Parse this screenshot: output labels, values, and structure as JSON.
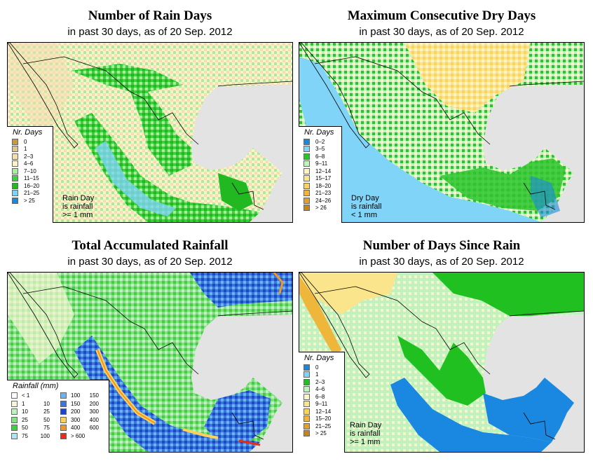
{
  "panels": [
    {
      "title": "Number of Rain Days",
      "subtitle": "in past 30 days, as of  20 Sep. 2012",
      "legend_title": "Nr. Days",
      "legend": [
        {
          "label": "0",
          "color": "#c79a42"
        },
        {
          "label": "1",
          "color": "#ddc58c"
        },
        {
          "label": "2–3",
          "color": "#f4deb3"
        },
        {
          "label": "4–6",
          "color": "#fbf3c8"
        },
        {
          "label": "7–10",
          "color": "#a9ec9c"
        },
        {
          "label": "11–15",
          "color": "#3fcf3f"
        },
        {
          "label": "16–20",
          "color": "#21b821"
        },
        {
          "label": "21–25",
          "color": "#7fd4f5"
        },
        {
          "label": "> 25",
          "color": "#1e88d8"
        }
      ],
      "note": [
        "Rain Day",
        "is rainfall",
        ">= 1 mm"
      ]
    },
    {
      "title": "Maximum Consecutive Dry Days",
      "subtitle": "in past 30 days, as of  20 Sep. 2012",
      "legend_title": "Nr. Days",
      "legend": [
        {
          "label": "0–2",
          "color": "#1a88e0"
        },
        {
          "label": "3–5",
          "color": "#80d4f7"
        },
        {
          "label": "6–8",
          "color": "#2bc42b"
        },
        {
          "label": "9–11",
          "color": "#bff2bf"
        },
        {
          "label": "12–14",
          "color": "#fbf4c6"
        },
        {
          "label": "15–17",
          "color": "#fbe58c"
        },
        {
          "label": "18–20",
          "color": "#f9d262"
        },
        {
          "label": "21–23",
          "color": "#efb63c"
        },
        {
          "label": "24–26",
          "color": "#e0a030"
        },
        {
          "label": "> 26",
          "color": "#c6841c"
        }
      ],
      "note": [
        "Dry Day",
        "is rainfall",
        "< 1 mm"
      ]
    },
    {
      "title": "Total Accumulated Rainfall",
      "subtitle": "in past 30 days, as of  20 Sep. 2012",
      "legend_title": "Rainfall (mm)",
      "legend_left": [
        {
          "lo": "< 1",
          "hi": "",
          "color": "#ffffff"
        },
        {
          "lo": "1",
          "hi": "10",
          "color": "#f6f6d4"
        },
        {
          "lo": "10",
          "hi": "25",
          "color": "#bff0bf"
        },
        {
          "lo": "25",
          "hi": "50",
          "color": "#86df86"
        },
        {
          "lo": "50",
          "hi": "75",
          "color": "#3fcf3f"
        },
        {
          "lo": "75",
          "hi": "100",
          "color": "#a9e6f7"
        }
      ],
      "legend_right": [
        {
          "lo": "100",
          "hi": "150",
          "color": "#6cb4f0"
        },
        {
          "lo": "150",
          "hi": "200",
          "color": "#3877dc"
        },
        {
          "lo": "200",
          "hi": "300",
          "color": "#1e46c8"
        },
        {
          "lo": "300",
          "hi": "400",
          "color": "#fbd25a"
        },
        {
          "lo": "400",
          "hi": "600",
          "color": "#f0962a"
        },
        {
          "lo": "> 600",
          "hi": "",
          "color": "#ee2a14"
        }
      ]
    },
    {
      "title": "Number of Days Since Rain",
      "subtitle": "in past 30 days, as of  20 Sep. 2012",
      "legend_title": "Nr. Days",
      "legend": [
        {
          "label": "0",
          "color": "#1a88e0"
        },
        {
          "label": "1",
          "color": "#80d4f7"
        },
        {
          "label": "2–3",
          "color": "#21c021"
        },
        {
          "label": "4–6",
          "color": "#bff2bf"
        },
        {
          "label": "6–8",
          "color": "#fbf4c6"
        },
        {
          "label": "9–11",
          "color": "#fbe58c"
        },
        {
          "label": "12–14",
          "color": "#f9d262"
        },
        {
          "label": "15–20",
          "color": "#efb63c"
        },
        {
          "label": "21–25",
          "color": "#e0a030"
        },
        {
          "label": "> 25",
          "color": "#c6841c"
        }
      ],
      "note": [
        "Rain Day",
        "is rainfall",
        ">= 1 mm"
      ]
    }
  ]
}
